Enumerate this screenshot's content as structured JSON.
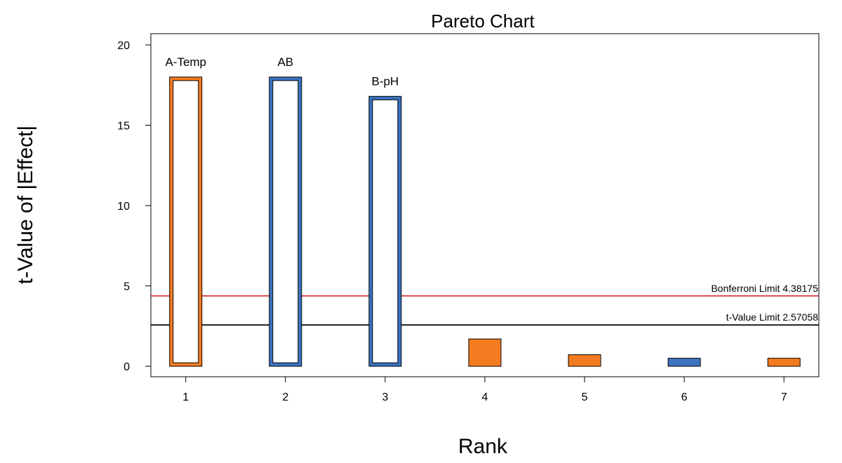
{
  "chart_data": {
    "type": "bar",
    "title": "Pareto Chart",
    "xlabel": "Rank",
    "ylabel": "t-Value of |Effect|",
    "categories": [
      "1",
      "2",
      "3",
      "4",
      "5",
      "6",
      "7"
    ],
    "values": [
      18.0,
      18.0,
      16.8,
      1.7,
      0.72,
      0.5,
      0.5
    ],
    "effect_sign": [
      "positive",
      "negative",
      "negative",
      "positive",
      "positive",
      "negative",
      "positive"
    ],
    "bar_labels": [
      "A-Temp",
      "AB",
      "B-pH",
      "",
      "",
      "",
      ""
    ],
    "hollow": [
      true,
      true,
      true,
      false,
      false,
      false,
      false
    ],
    "xlim": [
      0.65,
      7.35
    ],
    "ylim": [
      -0.65,
      20.7
    ],
    "yticks": [
      0,
      5,
      10,
      15,
      20
    ],
    "reference_lines": [
      {
        "label": "Bonferroni Limit 4.38175",
        "value": 4.38175,
        "color": "#dc3232"
      },
      {
        "label": "t-Value Limit 2.57058",
        "value": 2.57058,
        "color": "#000000"
      }
    ],
    "colors": {
      "positive": "#f47c20",
      "negative": "#3b73c0"
    },
    "grid": false,
    "legend": "none"
  }
}
